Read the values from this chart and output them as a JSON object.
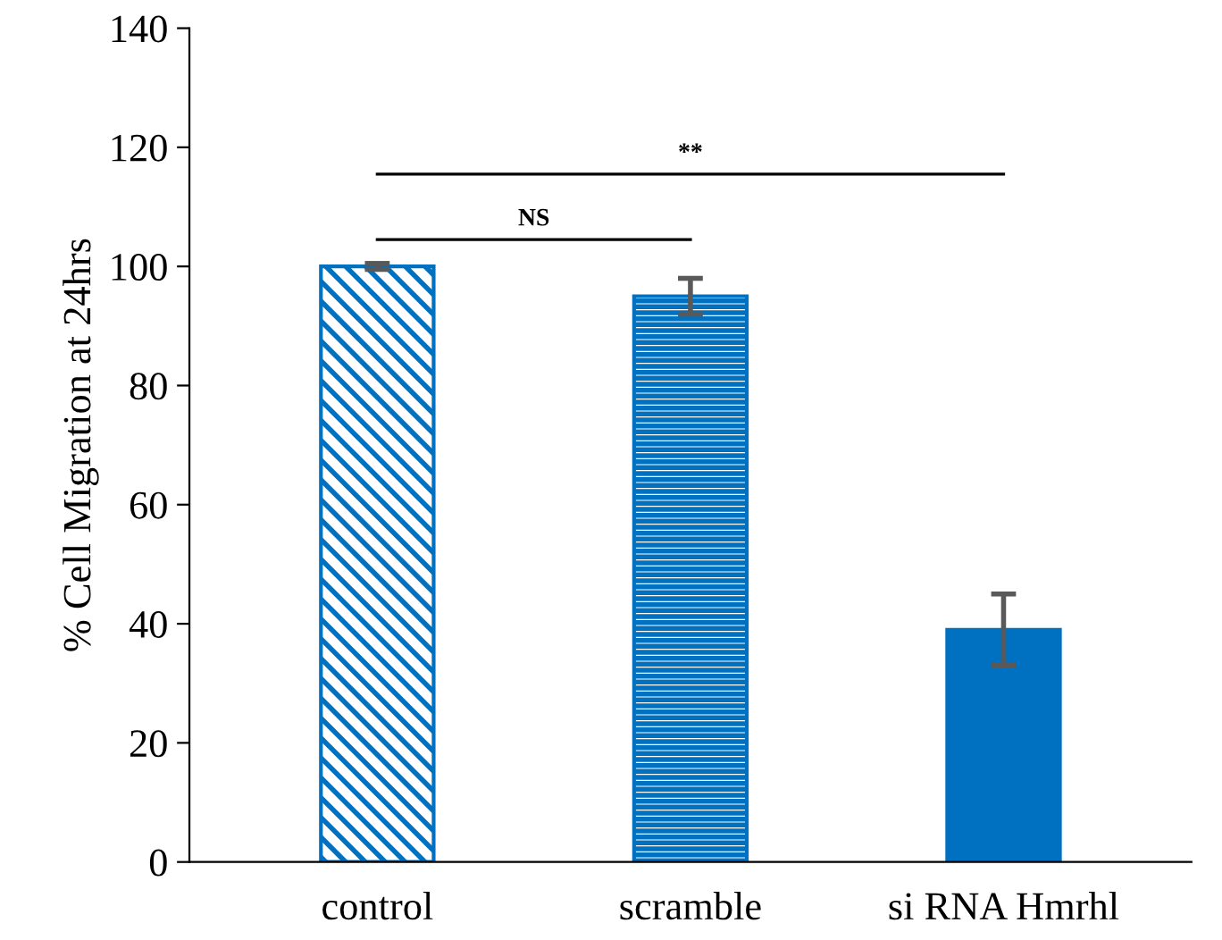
{
  "chart_data": {
    "type": "bar",
    "ylabel": "% Cell Migration at 24hrs",
    "categories": [
      "control",
      "scramble",
      "si RNA Hmrhl"
    ],
    "values": [
      100,
      95,
      39
    ],
    "errors": [
      0.5,
      3,
      6
    ],
    "color": "#0070c0",
    "ylim": [
      0,
      140
    ],
    "yticks": [
      0,
      20,
      40,
      60,
      80,
      100,
      120,
      140
    ],
    "grid": false,
    "annotations": [
      "NS",
      "**"
    ]
  }
}
